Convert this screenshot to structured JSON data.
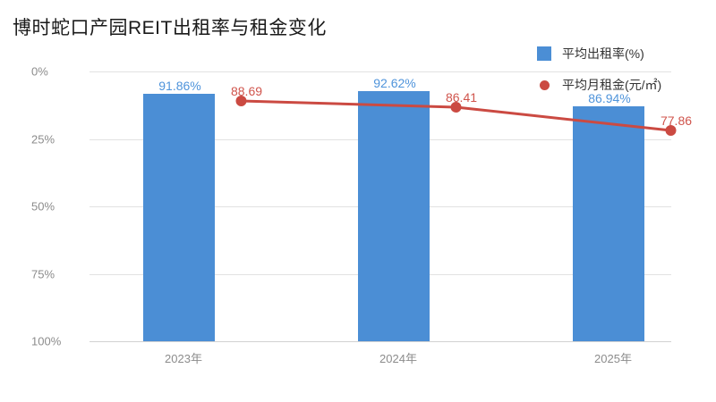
{
  "title": "博时蛇口产园REIT出租率与租金变化",
  "chart_data": {
    "type": "bar",
    "title": "博时蛇口产园REIT出租率与租金变化",
    "categories": [
      "2023年",
      "2024年",
      "2025年"
    ],
    "series": [
      {
        "name": "平均出租率(%)",
        "type": "bar",
        "values": [
          91.86,
          92.62,
          86.94
        ],
        "data_labels": [
          "91.86%",
          "92.62%",
          "86.94%"
        ],
        "color": "#4b8ed5",
        "label_color": "#4f94db"
      },
      {
        "name": "平均月租金(元/㎡)",
        "type": "line",
        "values": [
          88.69,
          86.41,
          77.86
        ],
        "data_labels": [
          "88.69",
          "86.41",
          "77.86"
        ],
        "color": "#cb4a42",
        "label_color": "#d0544c"
      }
    ],
    "y_axis": {
      "tick_labels": [
        "0%",
        "25%",
        "50%",
        "75%",
        "100%"
      ],
      "min": 0,
      "max": 100,
      "labels_inverted": true
    },
    "x_axis": {
      "tick_labels": [
        "2023年",
        "2024年",
        "2025年"
      ]
    },
    "grid": true,
    "legend_position": "top-right"
  },
  "colors": {
    "bar": "#4b8ed5",
    "line": "#cb4a42",
    "grid": "#e2e2e2",
    "axis": "#d2d2d2",
    "tick_text": "#8c8c8c",
    "title_text": "#1a1a1a",
    "legend_text": "#333333"
  }
}
